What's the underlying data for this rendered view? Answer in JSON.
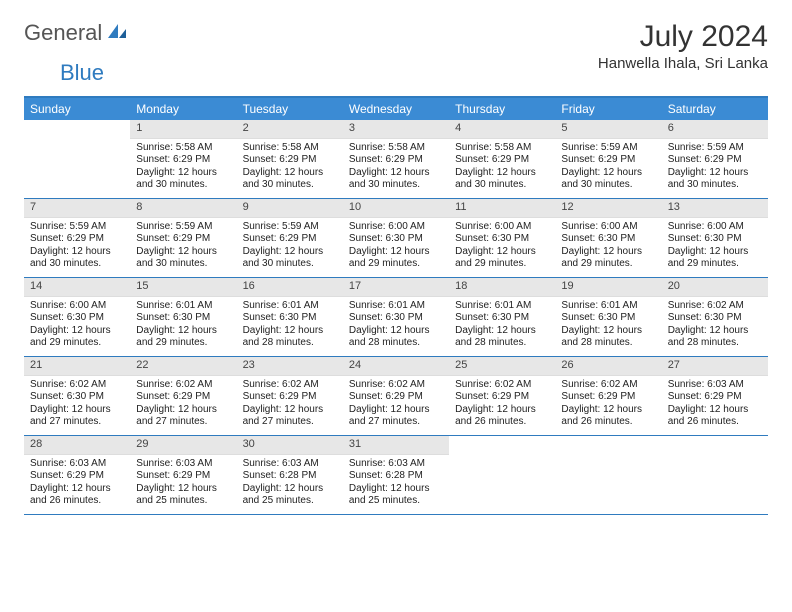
{
  "logo": {
    "text1": "General",
    "text2": "Blue"
  },
  "title": "July 2024",
  "location": "Hanwella Ihala, Sri Lanka",
  "colors": {
    "header_bg": "#3b8bd4",
    "header_text": "#ffffff",
    "border": "#2f7bbf",
    "daynum_bg": "#e7e7e7",
    "text": "#222222",
    "logo_gray": "#555555",
    "logo_blue": "#2f7bbf"
  },
  "dow": [
    "Sunday",
    "Monday",
    "Tuesday",
    "Wednesday",
    "Thursday",
    "Friday",
    "Saturday"
  ],
  "weeks": [
    [
      {
        "n": "",
        "sr": "",
        "ss": "",
        "dl": ""
      },
      {
        "n": "1",
        "sr": "Sunrise: 5:58 AM",
        "ss": "Sunset: 6:29 PM",
        "dl": "Daylight: 12 hours and 30 minutes."
      },
      {
        "n": "2",
        "sr": "Sunrise: 5:58 AM",
        "ss": "Sunset: 6:29 PM",
        "dl": "Daylight: 12 hours and 30 minutes."
      },
      {
        "n": "3",
        "sr": "Sunrise: 5:58 AM",
        "ss": "Sunset: 6:29 PM",
        "dl": "Daylight: 12 hours and 30 minutes."
      },
      {
        "n": "4",
        "sr": "Sunrise: 5:58 AM",
        "ss": "Sunset: 6:29 PM",
        "dl": "Daylight: 12 hours and 30 minutes."
      },
      {
        "n": "5",
        "sr": "Sunrise: 5:59 AM",
        "ss": "Sunset: 6:29 PM",
        "dl": "Daylight: 12 hours and 30 minutes."
      },
      {
        "n": "6",
        "sr": "Sunrise: 5:59 AM",
        "ss": "Sunset: 6:29 PM",
        "dl": "Daylight: 12 hours and 30 minutes."
      }
    ],
    [
      {
        "n": "7",
        "sr": "Sunrise: 5:59 AM",
        "ss": "Sunset: 6:29 PM",
        "dl": "Daylight: 12 hours and 30 minutes."
      },
      {
        "n": "8",
        "sr": "Sunrise: 5:59 AM",
        "ss": "Sunset: 6:29 PM",
        "dl": "Daylight: 12 hours and 30 minutes."
      },
      {
        "n": "9",
        "sr": "Sunrise: 5:59 AM",
        "ss": "Sunset: 6:29 PM",
        "dl": "Daylight: 12 hours and 30 minutes."
      },
      {
        "n": "10",
        "sr": "Sunrise: 6:00 AM",
        "ss": "Sunset: 6:30 PM",
        "dl": "Daylight: 12 hours and 29 minutes."
      },
      {
        "n": "11",
        "sr": "Sunrise: 6:00 AM",
        "ss": "Sunset: 6:30 PM",
        "dl": "Daylight: 12 hours and 29 minutes."
      },
      {
        "n": "12",
        "sr": "Sunrise: 6:00 AM",
        "ss": "Sunset: 6:30 PM",
        "dl": "Daylight: 12 hours and 29 minutes."
      },
      {
        "n": "13",
        "sr": "Sunrise: 6:00 AM",
        "ss": "Sunset: 6:30 PM",
        "dl": "Daylight: 12 hours and 29 minutes."
      }
    ],
    [
      {
        "n": "14",
        "sr": "Sunrise: 6:00 AM",
        "ss": "Sunset: 6:30 PM",
        "dl": "Daylight: 12 hours and 29 minutes."
      },
      {
        "n": "15",
        "sr": "Sunrise: 6:01 AM",
        "ss": "Sunset: 6:30 PM",
        "dl": "Daylight: 12 hours and 29 minutes."
      },
      {
        "n": "16",
        "sr": "Sunrise: 6:01 AM",
        "ss": "Sunset: 6:30 PM",
        "dl": "Daylight: 12 hours and 28 minutes."
      },
      {
        "n": "17",
        "sr": "Sunrise: 6:01 AM",
        "ss": "Sunset: 6:30 PM",
        "dl": "Daylight: 12 hours and 28 minutes."
      },
      {
        "n": "18",
        "sr": "Sunrise: 6:01 AM",
        "ss": "Sunset: 6:30 PM",
        "dl": "Daylight: 12 hours and 28 minutes."
      },
      {
        "n": "19",
        "sr": "Sunrise: 6:01 AM",
        "ss": "Sunset: 6:30 PM",
        "dl": "Daylight: 12 hours and 28 minutes."
      },
      {
        "n": "20",
        "sr": "Sunrise: 6:02 AM",
        "ss": "Sunset: 6:30 PM",
        "dl": "Daylight: 12 hours and 28 minutes."
      }
    ],
    [
      {
        "n": "21",
        "sr": "Sunrise: 6:02 AM",
        "ss": "Sunset: 6:30 PM",
        "dl": "Daylight: 12 hours and 27 minutes."
      },
      {
        "n": "22",
        "sr": "Sunrise: 6:02 AM",
        "ss": "Sunset: 6:29 PM",
        "dl": "Daylight: 12 hours and 27 minutes."
      },
      {
        "n": "23",
        "sr": "Sunrise: 6:02 AM",
        "ss": "Sunset: 6:29 PM",
        "dl": "Daylight: 12 hours and 27 minutes."
      },
      {
        "n": "24",
        "sr": "Sunrise: 6:02 AM",
        "ss": "Sunset: 6:29 PM",
        "dl": "Daylight: 12 hours and 27 minutes."
      },
      {
        "n": "25",
        "sr": "Sunrise: 6:02 AM",
        "ss": "Sunset: 6:29 PM",
        "dl": "Daylight: 12 hours and 26 minutes."
      },
      {
        "n": "26",
        "sr": "Sunrise: 6:02 AM",
        "ss": "Sunset: 6:29 PM",
        "dl": "Daylight: 12 hours and 26 minutes."
      },
      {
        "n": "27",
        "sr": "Sunrise: 6:03 AM",
        "ss": "Sunset: 6:29 PM",
        "dl": "Daylight: 12 hours and 26 minutes."
      }
    ],
    [
      {
        "n": "28",
        "sr": "Sunrise: 6:03 AM",
        "ss": "Sunset: 6:29 PM",
        "dl": "Daylight: 12 hours and 26 minutes."
      },
      {
        "n": "29",
        "sr": "Sunrise: 6:03 AM",
        "ss": "Sunset: 6:29 PM",
        "dl": "Daylight: 12 hours and 25 minutes."
      },
      {
        "n": "30",
        "sr": "Sunrise: 6:03 AM",
        "ss": "Sunset: 6:28 PM",
        "dl": "Daylight: 12 hours and 25 minutes."
      },
      {
        "n": "31",
        "sr": "Sunrise: 6:03 AM",
        "ss": "Sunset: 6:28 PM",
        "dl": "Daylight: 12 hours and 25 minutes."
      },
      {
        "n": "",
        "sr": "",
        "ss": "",
        "dl": ""
      },
      {
        "n": "",
        "sr": "",
        "ss": "",
        "dl": ""
      },
      {
        "n": "",
        "sr": "",
        "ss": "",
        "dl": ""
      }
    ]
  ]
}
